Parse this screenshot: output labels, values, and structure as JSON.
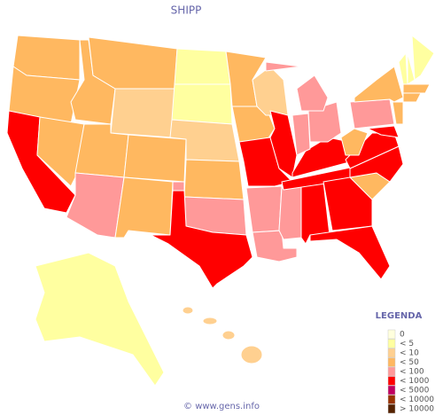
{
  "title": "SHIPP",
  "legend": {
    "title": "LEGENDA",
    "items": [
      {
        "label": "0",
        "color": "#ffffdd"
      },
      {
        "label": "< 5",
        "color": "#ffffa0"
      },
      {
        "label": "< 10",
        "color": "#ffd090"
      },
      {
        "label": "< 50",
        "color": "#ffb860"
      },
      {
        "label": "< 100",
        "color": "#ff9999"
      },
      {
        "label": "< 1000",
        "color": "#ff0000"
      },
      {
        "label": "< 5000",
        "color": "#c00060"
      },
      {
        "label": "< 10000",
        "color": "#993300"
      },
      {
        "label": "> 10000",
        "color": "#552200"
      }
    ]
  },
  "footer": "© www.gens.info"
}
